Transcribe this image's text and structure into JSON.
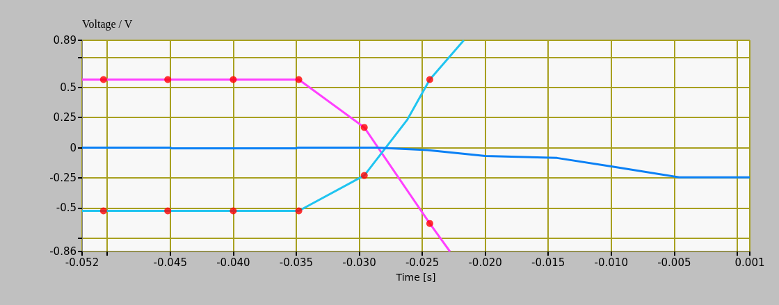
{
  "chart_data": {
    "type": "line",
    "xlabel": "Time [s]",
    "ylabel": "Voltage / V",
    "xlim": [
      -0.052,
      0.001
    ],
    "xticks": [
      {
        "value": -0.052,
        "label": "-0.052"
      },
      {
        "value": -0.05,
        "label": null
      },
      {
        "value": -0.045,
        "label": "-0.045"
      },
      {
        "value": -0.04,
        "label": "-0.040"
      },
      {
        "value": -0.035,
        "label": "-0.035"
      },
      {
        "value": -0.03,
        "label": "-0.030"
      },
      {
        "value": -0.025,
        "label": "-0.025"
      },
      {
        "value": -0.02,
        "label": "-0.020"
      },
      {
        "value": -0.015,
        "label": "-0.015"
      },
      {
        "value": -0.01,
        "label": "-0.010"
      },
      {
        "value": -0.005,
        "label": "-0.005"
      },
      {
        "value": 0,
        "label": null
      },
      {
        "value": 0.001,
        "label": "0.001"
      }
    ],
    "ylim": [
      -0.86,
      0.89
    ],
    "yticks": [
      {
        "value": -0.86,
        "label": "-0.86"
      },
      {
        "value": -0.75,
        "label": null
      },
      -0.5,
      -0.25,
      0,
      0.25,
      0.5,
      {
        "value": 0.75,
        "label": null
      },
      0.89
    ],
    "grid": true,
    "line_style": "solid",
    "series": [
      {
        "color": "#ff40ff",
        "marker": "none",
        "x": [
          -0.052,
          -0.0348,
          -0.0296,
          -0.0244,
          -0.0228
        ],
        "values": [
          0.565,
          0.565,
          0.168,
          -0.628,
          -0.86
        ]
      },
      {
        "color": "#20c4f0",
        "marker": "none",
        "x": [
          -0.052,
          -0.0348,
          -0.0296,
          -0.0262,
          -0.0244,
          -0.0217
        ],
        "values": [
          -0.523,
          -0.523,
          -0.23,
          0.23,
          0.565,
          0.89
        ]
      },
      {
        "color": "#0a80f5",
        "marker": "none",
        "x": [
          -0.052,
          -0.045,
          -0.0449,
          -0.035,
          -0.0349,
          -0.0286,
          -0.0246,
          -0.02,
          -0.0143,
          -0.01,
          -0.0046,
          0.001
        ],
        "values": [
          0,
          0,
          -0.005,
          -0.005,
          0,
          0,
          -0.02,
          -0.068,
          -0.085,
          -0.155,
          -0.245,
          -0.245
        ]
      },
      {
        "type": "scatter",
        "color": "#ff0000",
        "marker": "circle",
        "x": [
          -0.0503,
          -0.0452,
          -0.04,
          -0.0348,
          -0.0296,
          -0.0244,
          -0.0503,
          -0.0452,
          -0.04,
          -0.0348,
          -0.0296,
          -0.0244
        ],
        "values": [
          0.565,
          0.565,
          0.565,
          0.565,
          0.168,
          -0.628,
          -0.523,
          -0.523,
          -0.523,
          -0.523,
          -0.23,
          0.565
        ]
      }
    ]
  }
}
